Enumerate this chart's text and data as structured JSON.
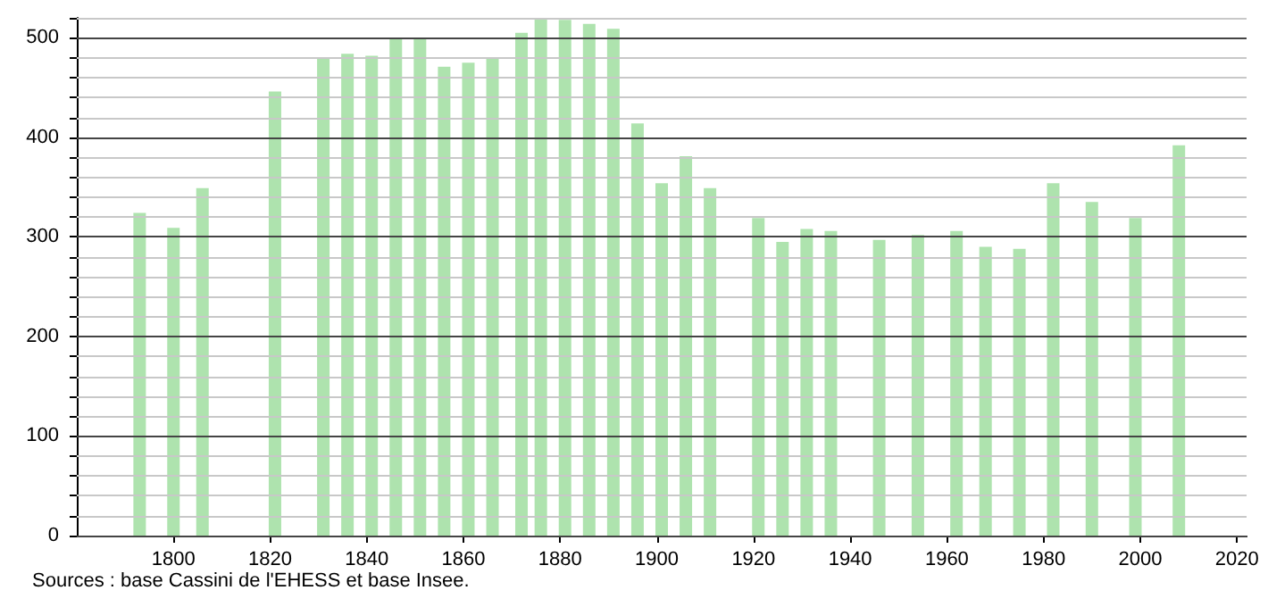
{
  "chart_data": {
    "type": "bar",
    "color": "#aee3ae",
    "x": [
      1793,
      1800,
      1806,
      1821,
      1831,
      1836,
      1841,
      1846,
      1851,
      1856,
      1861,
      1866,
      1872,
      1876,
      1881,
      1886,
      1891,
      1896,
      1901,
      1906,
      1911,
      1921,
      1926,
      1931,
      1936,
      1946,
      1954,
      1962,
      1968,
      1975,
      1982,
      1990,
      1999,
      2008
    ],
    "values": [
      324,
      309,
      349,
      446,
      480,
      484,
      482,
      500,
      500,
      471,
      475,
      480,
      505,
      520,
      518,
      514,
      509,
      414,
      354,
      381,
      349,
      319,
      295,
      308,
      306,
      297,
      302,
      306,
      290,
      288,
      354,
      335,
      319,
      392
    ],
    "xlim": [
      1780,
      2022
    ],
    "xticks": [
      1800,
      1820,
      1840,
      1860,
      1880,
      1900,
      1920,
      1940,
      1960,
      1980,
      2000,
      2020
    ],
    "ylim": [
      0,
      520
    ],
    "yticks": [
      0,
      {
        "value": 20,
        "label": null
      },
      {
        "value": 40,
        "label": null
      },
      {
        "value": 60,
        "label": null
      },
      {
        "value": 80,
        "label": null
      },
      100,
      {
        "value": 120,
        "label": null
      },
      {
        "value": 140,
        "label": null
      },
      {
        "value": 160,
        "label": null
      },
      {
        "value": 180,
        "label": null
      },
      200,
      {
        "value": 220,
        "label": null
      },
      {
        "value": 240,
        "label": null
      },
      {
        "value": 260,
        "label": null
      },
      {
        "value": 280,
        "label": null
      },
      300,
      {
        "value": 320,
        "label": null
      },
      {
        "value": 340,
        "label": null
      },
      {
        "value": 360,
        "label": null
      },
      {
        "value": 380,
        "label": null
      },
      400,
      {
        "value": 420,
        "label": null
      },
      {
        "value": 440,
        "label": null
      },
      {
        "value": 460,
        "label": null
      },
      {
        "value": 480,
        "label": null
      },
      500,
      {
        "value": 520,
        "label": null
      }
    ],
    "grid": "y",
    "annotations": [
      "Sources : base Cassini de l'EHESS et base Insee."
    ]
  }
}
